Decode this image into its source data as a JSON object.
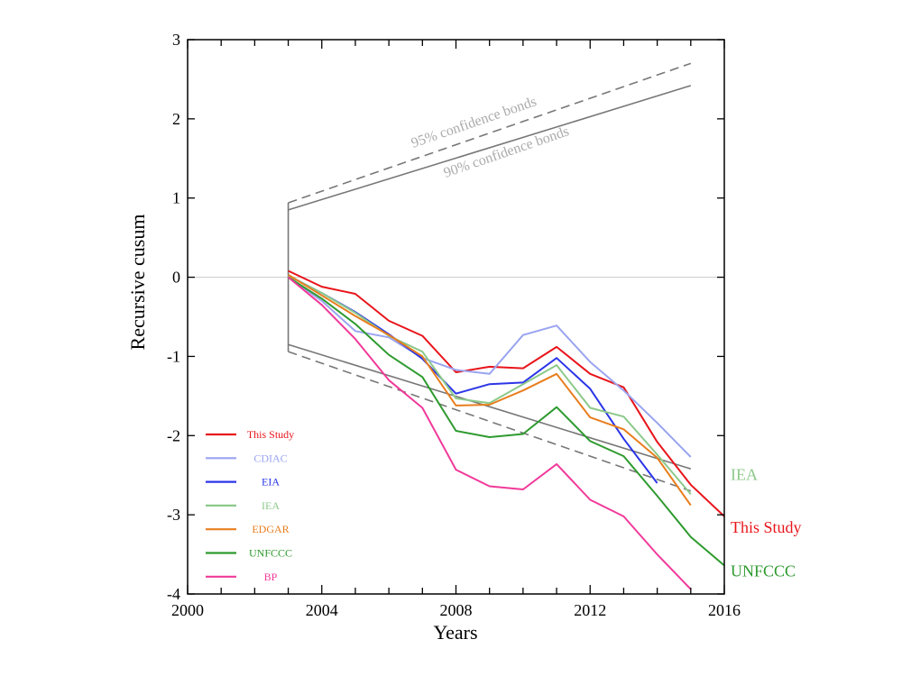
{
  "chart_data": {
    "type": "line",
    "xlabel": "Years",
    "ylabel": "Recursive cusum",
    "xlim": [
      2000,
      2016
    ],
    "ylim": [
      -4,
      3
    ],
    "x_ticks": [
      "2000",
      "2004",
      "2008",
      "2012",
      "2016"
    ],
    "y_ticks": [
      "3",
      "2",
      "1",
      "0",
      "-1",
      "-2",
      "-3",
      "-4"
    ],
    "zero_line": 0,
    "band_labels": [
      "95% confidence bonds",
      "90% confidence bonds"
    ],
    "bands": [
      {
        "name": "95% confidence bonds",
        "style": "dashed",
        "color": "#777777",
        "upper": [
          [
            2003,
            0.94
          ],
          [
            2015,
            2.7
          ]
        ],
        "lower": [
          [
            2003,
            -0.94
          ],
          [
            2015,
            -2.7
          ]
        ]
      },
      {
        "name": "90% confidence bonds",
        "style": "solid",
        "color": "#777777",
        "upper": [
          [
            2003,
            0.85
          ],
          [
            2015,
            2.42
          ]
        ],
        "lower": [
          [
            2003,
            -0.85
          ],
          [
            2015,
            -2.42
          ]
        ]
      }
    ],
    "series": [
      {
        "name": "This Study",
        "color": "#e8151b",
        "x": [
          2003,
          2004,
          2005,
          2006,
          2007,
          2008,
          2009,
          2010,
          2011,
          2012,
          2013,
          2014,
          2015,
          2016
        ],
        "y": [
          0.08,
          -0.12,
          -0.21,
          -0.55,
          -0.74,
          -1.2,
          -1.13,
          -1.15,
          -0.88,
          -1.22,
          -1.39,
          -2.08,
          -2.62,
          -3.02
        ]
      },
      {
        "name": "CDIAC",
        "color": "#9aa4f0",
        "x": [
          2003,
          2004,
          2005,
          2006,
          2007,
          2008,
          2009,
          2010,
          2011,
          2012,
          2013,
          2014,
          2015
        ],
        "y": [
          0.0,
          -0.3,
          -0.68,
          -0.76,
          -1.02,
          -1.17,
          -1.22,
          -0.73,
          -0.61,
          -1.07,
          -1.43,
          -1.84,
          -2.27
        ]
      },
      {
        "name": "EIA",
        "color": "#2b35e8",
        "x": [
          2003,
          2004,
          2005,
          2006,
          2007,
          2008,
          2009,
          2010,
          2011,
          2012,
          2013,
          2014
        ],
        "y": [
          0.02,
          -0.2,
          -0.44,
          -0.72,
          -1.03,
          -1.47,
          -1.35,
          -1.33,
          -1.02,
          -1.41,
          -2.04,
          -2.6
        ]
      },
      {
        "name": "IEA",
        "color": "#8cc98a",
        "x": [
          2003,
          2004,
          2005,
          2006,
          2007,
          2008,
          2009,
          2010,
          2011,
          2012,
          2013,
          2014,
          2015
        ],
        "y": [
          0.02,
          -0.2,
          -0.45,
          -0.74,
          -0.94,
          -1.53,
          -1.59,
          -1.35,
          -1.11,
          -1.65,
          -1.76,
          -2.24,
          -2.74
        ]
      },
      {
        "name": "EDGAR",
        "color": "#e87e1e",
        "x": [
          2003,
          2004,
          2005,
          2006,
          2007,
          2008,
          2009,
          2010,
          2011,
          2012,
          2013,
          2014,
          2015
        ],
        "y": [
          0.03,
          -0.23,
          -0.49,
          -0.73,
          -1.0,
          -1.62,
          -1.61,
          -1.43,
          -1.22,
          -1.77,
          -1.92,
          -2.28,
          -2.88
        ]
      },
      {
        "name": "UNFCCC",
        "color": "#2e9a2e",
        "x": [
          2003,
          2004,
          2005,
          2006,
          2007,
          2008,
          2009,
          2010,
          2011,
          2012,
          2013,
          2014,
          2015,
          2016
        ],
        "y": [
          0.0,
          -0.27,
          -0.59,
          -0.98,
          -1.26,
          -1.94,
          -2.02,
          -1.98,
          -1.64,
          -2.07,
          -2.26,
          -2.76,
          -3.28,
          -3.64
        ]
      },
      {
        "name": "BP",
        "color": "#f03a9a",
        "x": [
          2003,
          2004,
          2005,
          2006,
          2007,
          2008,
          2009,
          2010,
          2011,
          2012,
          2013,
          2014,
          2015
        ],
        "y": [
          0.0,
          -0.35,
          -0.78,
          -1.3,
          -1.65,
          -2.43,
          -2.64,
          -2.68,
          -2.36,
          -2.81,
          -3.02,
          -3.5,
          -3.94
        ]
      }
    ],
    "legend": [
      "This Study",
      "CDIAC",
      "EIA",
      "IEA",
      "EDGAR",
      "UNFCCC",
      "BP"
    ],
    "legend_position": "bottom-left",
    "end_labels": [
      {
        "text": "IEA",
        "color": "#8cc98a"
      },
      {
        "text": "This Study",
        "color": "#e8151b"
      },
      {
        "text": "UNFCCC",
        "color": "#2e9a2e"
      }
    ]
  }
}
